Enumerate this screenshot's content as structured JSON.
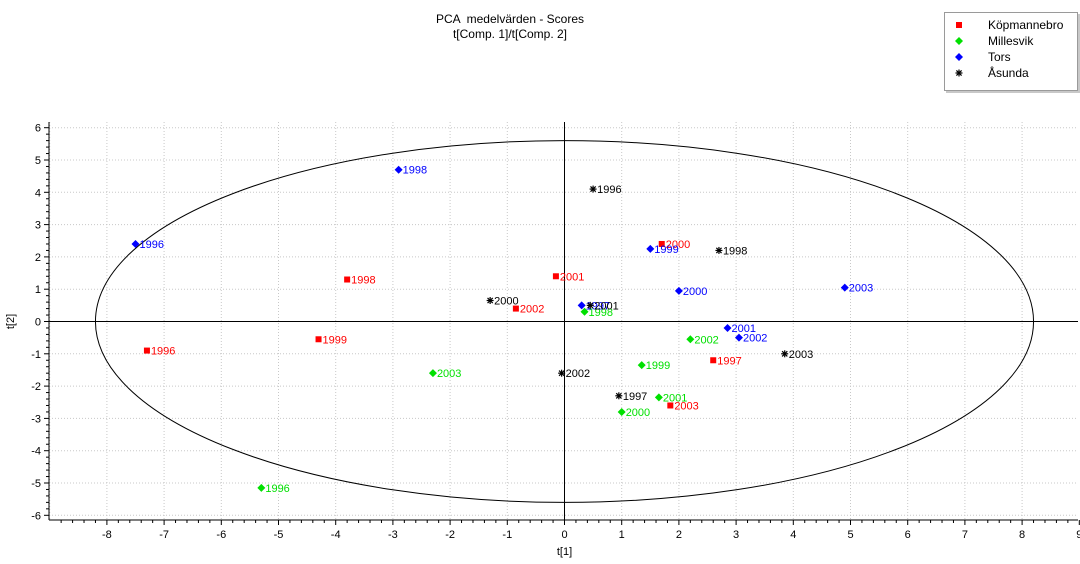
{
  "chart_data": {
    "type": "scatter",
    "title": "PCA  medelvärden - Scores",
    "subtitle": "t[Comp. 1]/t[Comp. 2]",
    "xlabel": "t[1]",
    "ylabel": "t[2]",
    "xlim": [
      -9,
      9
    ],
    "ylim": [
      -6.1,
      6.1
    ],
    "x_ticks": [
      -8,
      -7,
      -6,
      -5,
      -4,
      -3,
      -2,
      -1,
      0,
      1,
      2,
      3,
      4,
      5,
      6,
      7,
      8,
      9
    ],
    "y_ticks": [
      -6,
      -5,
      -4,
      -3,
      -2,
      -1,
      0,
      1,
      2,
      3,
      4,
      5,
      6
    ],
    "grid": true,
    "legend_position": "top-right",
    "ellipse": {
      "cx": 0,
      "cy": 0,
      "rx": 8.2,
      "ry": 5.6
    },
    "series": [
      {
        "name": "Köpmannebro",
        "color": "#ff0000",
        "marker": "square",
        "points": [
          {
            "x": -7.3,
            "y": -0.9,
            "label": "1996"
          },
          {
            "x": 2.6,
            "y": -1.2,
            "label": "1997"
          },
          {
            "x": -3.8,
            "y": 1.3,
            "label": "1998"
          },
          {
            "x": -4.3,
            "y": -0.55,
            "label": "1999"
          },
          {
            "x": 1.7,
            "y": 2.4,
            "label": "2000"
          },
          {
            "x": -0.15,
            "y": 1.4,
            "label": "2001"
          },
          {
            "x": -0.85,
            "y": 0.4,
            "label": "2002"
          },
          {
            "x": 1.85,
            "y": -2.6,
            "label": "2003"
          }
        ]
      },
      {
        "name": "Millesvik",
        "color": "#00e000",
        "marker": "diamond",
        "points": [
          {
            "x": -5.3,
            "y": -5.15,
            "label": "1996"
          },
          {
            "x": 0.35,
            "y": 0.3,
            "label": "1998"
          },
          {
            "x": 1.35,
            "y": -1.35,
            "label": "1999"
          },
          {
            "x": 1.0,
            "y": -2.8,
            "label": "2000"
          },
          {
            "x": 1.65,
            "y": -2.35,
            "label": "2001"
          },
          {
            "x": 2.2,
            "y": -0.55,
            "label": "2002"
          },
          {
            "x": -2.3,
            "y": -1.6,
            "label": "2003"
          }
        ]
      },
      {
        "name": "Tors",
        "color": "#0000ff",
        "marker": "diamond",
        "points": [
          {
            "x": -7.5,
            "y": 2.4,
            "label": "1996"
          },
          {
            "x": 0.3,
            "y": 0.5,
            "label": "1997"
          },
          {
            "x": -2.9,
            "y": 4.7,
            "label": "1998"
          },
          {
            "x": 1.5,
            "y": 2.25,
            "label": "1999"
          },
          {
            "x": 2.0,
            "y": 0.95,
            "label": "2000"
          },
          {
            "x": 2.85,
            "y": -0.2,
            "label": "2001"
          },
          {
            "x": 3.05,
            "y": -0.5,
            "label": "2002"
          },
          {
            "x": 4.9,
            "y": 1.05,
            "label": "2003"
          }
        ]
      },
      {
        "name": "Åsunda",
        "color": "#000000",
        "marker": "star",
        "points": [
          {
            "x": 0.5,
            "y": 4.1,
            "label": "1996"
          },
          {
            "x": 0.95,
            "y": -2.3,
            "label": "1997"
          },
          {
            "x": 2.7,
            "y": 2.2,
            "label": "1998"
          },
          {
            "x": -1.3,
            "y": 0.65,
            "label": "2000"
          },
          {
            "x": 0.45,
            "y": 0.5,
            "label": "2001"
          },
          {
            "x": -0.05,
            "y": -1.6,
            "label": "2002"
          },
          {
            "x": 3.85,
            "y": -1.0,
            "label": "2003"
          }
        ]
      }
    ]
  }
}
